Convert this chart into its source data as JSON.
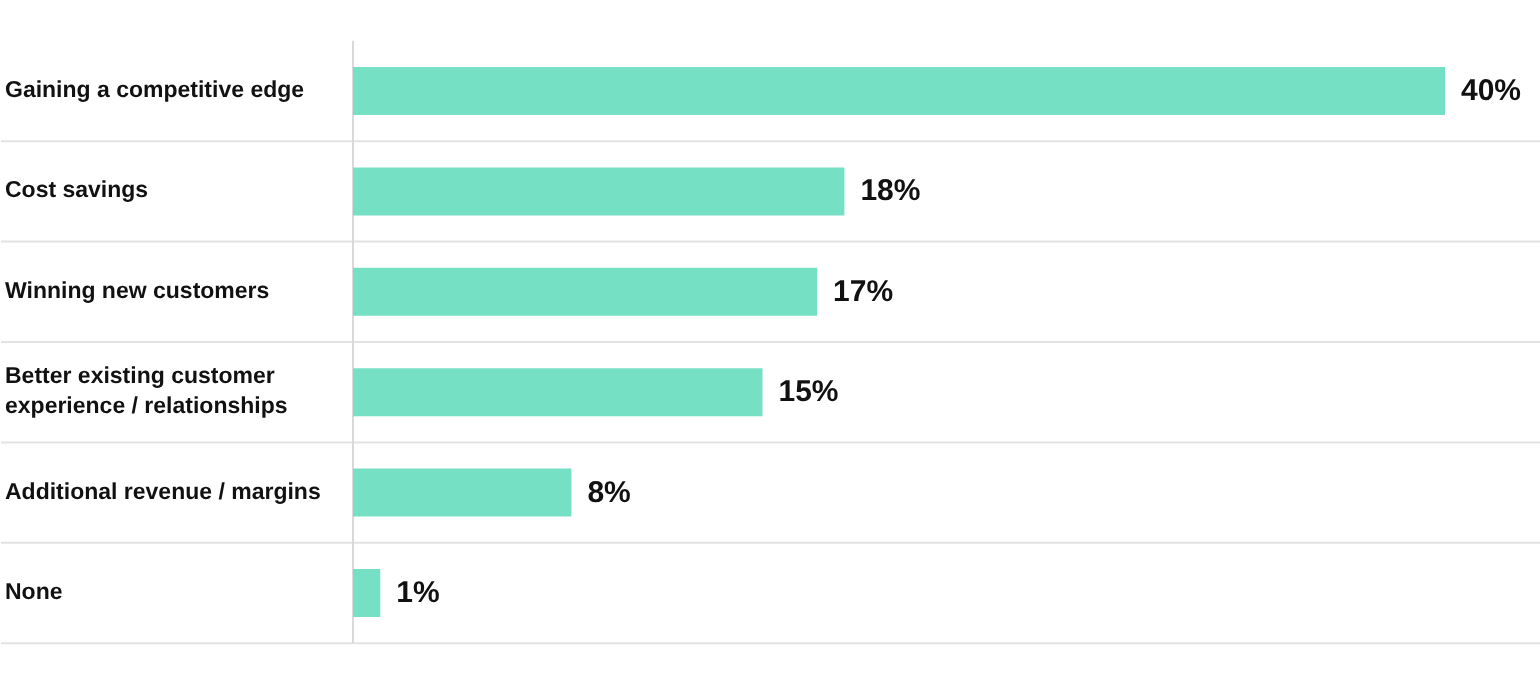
{
  "chart_data": {
    "type": "bar",
    "orientation": "horizontal",
    "categories": [
      "Gaining a competitive edge",
      "Cost savings",
      "Winning new customers",
      "Better existing customer experience / relationships",
      "Additional revenue / margins",
      "None"
    ],
    "values": [
      40,
      18,
      17,
      15,
      8,
      1
    ],
    "value_labels": [
      "40%",
      "18%",
      "17%",
      "15%",
      "8%",
      "1%"
    ],
    "color": "#76e0c4",
    "grid": "y"
  }
}
